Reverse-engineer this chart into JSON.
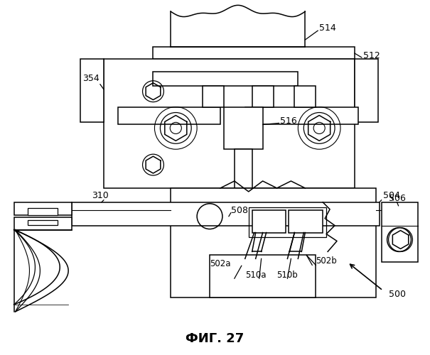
{
  "title": "ФИГ. 27",
  "title_fontsize": 13,
  "background_color": "#ffffff",
  "line_color": "#000000",
  "linewidth": 1.1,
  "fig_w": 6.05,
  "fig_h": 5.0,
  "dpi": 100,
  "xlim": [
    0,
    605
  ],
  "ylim": [
    0,
    500
  ]
}
